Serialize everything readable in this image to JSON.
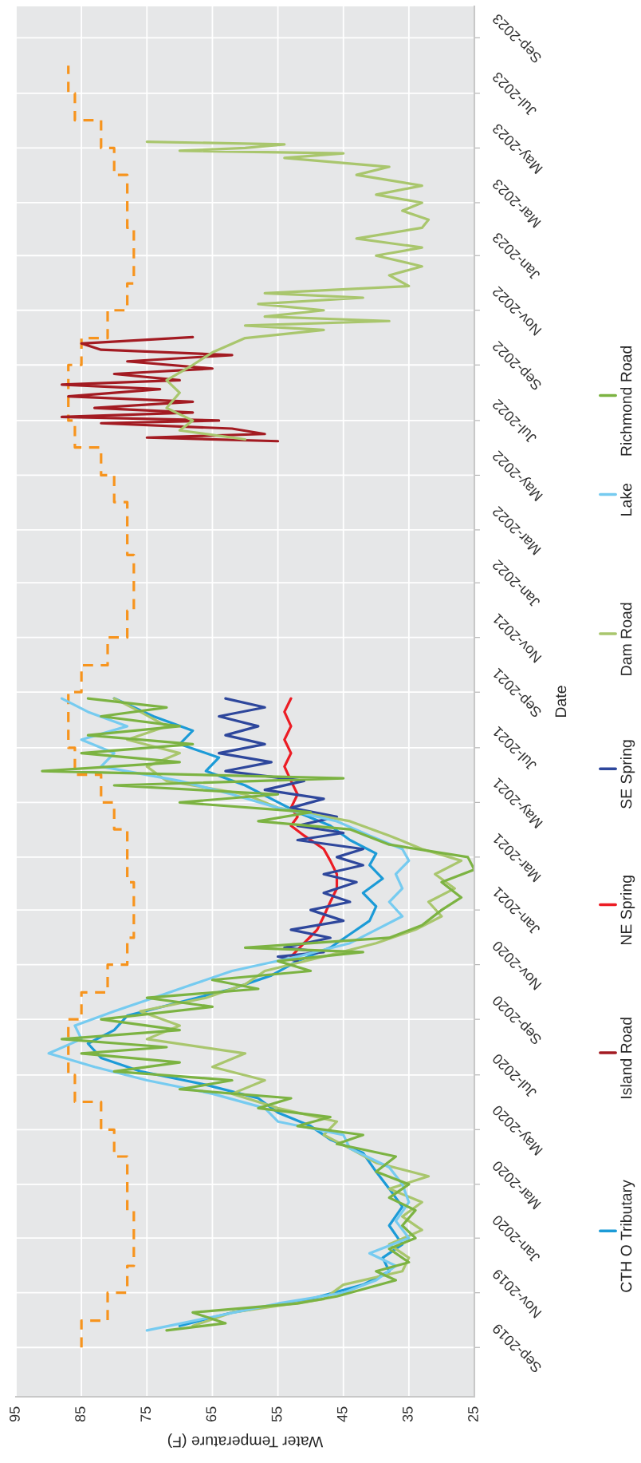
{
  "chart_data": {
    "type": "line",
    "orientation": "horizontal",
    "xlabel": "Water Temperature (F)",
    "ylabel": "Date",
    "ylim": [
      "2019-07-08",
      "2023-10-06"
    ],
    "xlim": [
      95,
      25
    ],
    "yticks": [
      {
        "value": "2019-09",
        "label": "Sep-2019"
      },
      {
        "value": "2019-11",
        "label": "Nov-2019"
      },
      {
        "value": "2020-01",
        "label": "Jan-2020"
      },
      {
        "value": "2020-03",
        "label": "Mar-2020"
      },
      {
        "value": "2020-05",
        "label": "May-2020"
      },
      {
        "value": "2020-07",
        "label": "Jul-2020"
      },
      {
        "value": "2020-09",
        "label": "Sep-2020"
      },
      {
        "value": "2020-11",
        "label": "Nov-2020"
      },
      {
        "value": "2021-01",
        "label": "Jan-2021"
      },
      {
        "value": "2021-03",
        "label": "Mar-2021"
      },
      {
        "value": "2021-05",
        "label": "May-2021"
      },
      {
        "value": "2021-07",
        "label": "Jul-2021"
      },
      {
        "value": "2021-09",
        "label": "Sep-2021"
      },
      {
        "value": "2021-11",
        "label": "Nov-2021"
      },
      {
        "value": "2022-01",
        "label": "Jan-2022"
      },
      {
        "value": "2022-03",
        "label": "Mar-2022"
      },
      {
        "value": "2022-05",
        "label": "May-2022"
      },
      {
        "value": "2022-07",
        "label": "Jul-2022"
      },
      {
        "value": "2022-09",
        "label": "Sep-2022"
      },
      {
        "value": "2022-11",
        "label": "Nov-2022"
      },
      {
        "value": "2023-01",
        "label": "Jan-2023"
      },
      {
        "value": "2023-03",
        "label": "Mar-2023"
      },
      {
        "value": "2023-05",
        "label": "May-2023"
      },
      {
        "value": "2023-07",
        "label": "Jul-2023"
      },
      {
        "value": "2023-09",
        "label": "Sep-2023"
      }
    ],
    "xticks": [
      95,
      85,
      75,
      65,
      55,
      45,
      35,
      25
    ],
    "grid": true,
    "legend": "right",
    "series": [
      {
        "type": "step",
        "line_style": "dashed",
        "color": "#f7941d",
        "x": [
          "2019-09",
          "2019-10",
          "2019-11",
          "2019-12",
          "2020-01",
          "2020-02",
          "2020-03",
          "2020-04",
          "2020-05",
          "2020-06",
          "2020-07",
          "2020-08",
          "2020-09",
          "2020-10",
          "2020-11",
          "2020-12",
          "2021-01",
          "2021-02",
          "2021-03",
          "2021-04",
          "2021-05",
          "2021-06",
          "2021-07",
          "2021-08",
          "2021-09",
          "2021-10",
          "2021-11",
          "2021-12",
          "2022-01",
          "2022-02",
          "2022-03",
          "2022-04",
          "2022-05",
          "2022-06",
          "2022-07",
          "2022-08",
          "2022-09",
          "2022-10",
          "2022-11",
          "2022-12",
          "2023-01",
          "2023-02",
          "2023-03",
          "2023-04",
          "2023-05",
          "2023-06",
          "2023-07",
          "2023-08"
        ],
        "values": [
          85,
          81,
          78,
          77,
          77,
          78,
          78,
          80,
          82,
          86,
          87,
          87,
          85,
          81,
          78,
          77,
          77,
          78,
          78,
          80,
          82,
          86,
          87,
          87,
          85,
          81,
          78,
          77,
          77,
          78,
          78,
          80,
          82,
          86,
          87,
          87,
          85,
          81,
          78,
          77,
          77,
          78,
          78,
          80,
          82,
          86,
          87,
          87
        ]
      },
      {
        "name": "CTH O Tributary",
        "color": "#1c9bd7",
        "x": [
          "2019-09-25",
          "2019-10-10",
          "2019-10-25",
          "2019-11-10",
          "2019-11-25",
          "2019-12-10",
          "2019-12-25",
          "2020-01-15",
          "2020-02-05",
          "2020-02-25",
          "2020-03-15",
          "2020-04-05",
          "2020-04-20",
          "2020-05-05",
          "2020-05-20",
          "2020-06-05",
          "2020-06-20",
          "2020-07-05",
          "2020-07-20",
          "2020-08-05",
          "2020-08-20",
          "2020-09-05",
          "2020-09-20",
          "2020-10-05",
          "2020-10-20",
          "2020-11-05",
          "2020-11-20",
          "2020-12-05",
          "2020-12-20",
          "2021-01-05",
          "2021-01-20",
          "2021-02-05",
          "2021-02-20",
          "2021-03-05",
          "2021-03-20",
          "2021-04-05",
          "2021-04-20",
          "2021-05-05",
          "2021-05-20",
          "2021-06-05",
          "2021-06-20",
          "2021-07-05",
          "2021-07-20",
          "2021-08-05",
          "2021-08-25"
        ],
        "values": [
          70,
          62,
          50,
          42,
          38,
          39,
          36,
          38,
          36,
          38,
          40,
          42,
          47,
          50,
          55,
          58,
          66,
          76,
          82,
          84,
          80,
          78,
          70,
          62,
          56,
          52,
          47,
          44,
          41,
          40,
          42,
          39,
          41,
          40,
          44,
          47,
          52,
          56,
          60,
          66,
          64,
          70,
          68,
          74,
          80
        ]
      },
      {
        "name": "Island Road",
        "color": "#a31b22",
        "x": [
          "2022-06-08",
          "2022-06-12",
          "2022-06-16",
          "2022-06-22",
          "2022-06-28",
          "2022-07-01",
          "2022-07-05",
          "2022-07-10",
          "2022-07-15",
          "2022-07-22",
          "2022-07-28",
          "2022-08-05",
          "2022-08-10",
          "2022-08-15",
          "2022-08-22",
          "2022-08-28",
          "2022-09-05",
          "2022-09-12",
          "2022-09-18",
          "2022-09-25",
          "2022-10-02"
        ],
        "values": [
          55,
          75,
          57,
          62,
          82,
          64,
          88,
          68,
          83,
          68,
          87,
          73,
          88,
          70,
          80,
          65,
          78,
          62,
          82,
          85,
          68
        ]
      },
      {
        "name": "NE Spring",
        "color": "#ec1c24",
        "x": [
          "2020-11-10",
          "2020-11-25",
          "2020-12-10",
          "2020-12-25",
          "2021-01-10",
          "2021-01-25",
          "2021-02-10",
          "2021-02-25",
          "2021-03-10",
          "2021-03-25",
          "2021-04-05",
          "2021-04-15",
          "2021-04-25",
          "2021-05-10",
          "2021-05-25",
          "2021-06-10",
          "2021-06-25",
          "2021-07-10",
          "2021-07-25",
          "2021-08-10",
          "2021-08-25"
        ],
        "values": [
          53,
          51,
          49,
          48,
          47,
          46,
          46,
          47,
          48,
          51,
          53,
          52,
          53,
          52,
          53,
          54,
          53,
          54,
          53,
          54,
          53
        ]
      },
      {
        "name": "SE Spring",
        "color": "#2e479c",
        "x": [
          "2020-11-05",
          "2020-11-10",
          "2020-11-15",
          "2020-11-20",
          "2020-12-01",
          "2020-12-10",
          "2020-12-20",
          "2021-01-01",
          "2021-01-10",
          "2021-01-20",
          "2021-02-01",
          "2021-02-10",
          "2021-02-20",
          "2021-03-01",
          "2021-03-10",
          "2021-03-20",
          "2021-03-28",
          "2021-04-05",
          "2021-04-15",
          "2021-04-25",
          "2021-05-05",
          "2021-05-15",
          "2021-05-25",
          "2021-06-05",
          "2021-06-15",
          "2021-06-25",
          "2021-07-05",
          "2021-07-15",
          "2021-07-25",
          "2021-08-05",
          "2021-08-15",
          "2021-08-25"
        ],
        "values": [
          52,
          55,
          48,
          54,
          47,
          53,
          45,
          50,
          44,
          48,
          43,
          48,
          42,
          46,
          42,
          52,
          45,
          52,
          46,
          53,
          48,
          57,
          51,
          63,
          56,
          64,
          57,
          63,
          58,
          64,
          57,
          63
        ]
      },
      {
        "name": "Dam Road",
        "color": "#a9c66d",
        "x": [
          "2019-09-25",
          "2019-10-10",
          "2019-10-25",
          "2019-11-10",
          "2019-11-25",
          "2019-12-10",
          "2019-12-25",
          "2020-01-10",
          "2020-01-25",
          "2020-02-10",
          "2020-02-25",
          "2020-03-10",
          "2020-03-25",
          "2020-04-10",
          "2020-04-25",
          "2020-05-10",
          "2020-05-25",
          "2020-06-10",
          "2020-06-25",
          "2020-07-10",
          "2020-07-25",
          "2020-08-10",
          "2020-08-25",
          "2020-09-10",
          "2020-09-25",
          "2020-10-10",
          "2020-10-25",
          "2020-11-10",
          "2020-11-25",
          "2020-12-10",
          "2020-12-25",
          "2021-01-10",
          "2021-01-25",
          "2021-02-10",
          "2021-02-25",
          "2021-03-10",
          "2021-03-25",
          "2021-04-10",
          "2021-04-25",
          "2021-05-10",
          "2021-05-25",
          "2021-06-10",
          "2021-06-25",
          "2021-07-10",
          "2021-07-25",
          "2021-08-10",
          "2021-08-25",
          "2022-01-01",
          "2022-06-10",
          "2022-06-20",
          "2022-07-01",
          "2022-07-15",
          "2022-08-01",
          "2022-08-15",
          "2022-09-01",
          "2022-09-15",
          "2022-10-01",
          "2022-10-10",
          "2022-10-15",
          "2022-10-20",
          "2022-10-25",
          "2022-11-01",
          "2022-11-08",
          "2022-11-15",
          "2022-11-20",
          "2022-11-28",
          "2022-12-10",
          "2022-12-20",
          "2023-01-01",
          "2023-01-10",
          "2023-01-20",
          "2023-02-01",
          "2023-02-10",
          "2023-02-20",
          "2023-03-01",
          "2023-03-10",
          "2023-03-20",
          "2023-04-01",
          "2023-04-10",
          "2023-04-20",
          "2023-04-25",
          "2023-04-28",
          "2023-05-01",
          "2023-05-05",
          "2023-05-08"
        ],
        "values": [
          68,
          62,
          48,
          45,
          36,
          35,
          38,
          33,
          36,
          33,
          38,
          32,
          40,
          44,
          48,
          46,
          55,
          62,
          57,
          65,
          60,
          75,
          70,
          76,
          66,
          60,
          57,
          48,
          40,
          34,
          30,
          32,
          28,
          31,
          27,
          33,
          38,
          44,
          55,
          60,
          72,
          75,
          70,
          78,
          72,
          76,
          80,
          null,
          60,
          70,
          68,
          72,
          70,
          72,
          68,
          65,
          60,
          48,
          60,
          38,
          57,
          48,
          58,
          42,
          57,
          35,
          38,
          33,
          40,
          33,
          43,
          33,
          32,
          36,
          33,
          40,
          33,
          43,
          38,
          54,
          45,
          70,
          60,
          54,
          75
        ]
      },
      {
        "name": "Lake",
        "color": "#76cbf0",
        "x": [
          "2019-09-20",
          "2019-10-05",
          "2019-10-20",
          "2019-11-01",
          "2019-11-15",
          "2019-12-01",
          "2019-12-15",
          "2020-01-01",
          "2020-01-20",
          "2020-02-10",
          "2020-03-01",
          "2020-03-20",
          "2020-04-10",
          "2020-04-25",
          "2020-05-10",
          "2020-05-25",
          "2020-06-10",
          "2020-06-25",
          "2020-07-10",
          "2020-07-25",
          "2020-08-10",
          "2020-08-25",
          "2020-09-10",
          "2020-09-25",
          "2020-10-10",
          "2020-10-25",
          "2020-11-10",
          "2020-11-25",
          "2020-12-10",
          "2020-12-25",
          "2021-01-10",
          "2021-01-25",
          "2021-02-10",
          "2021-02-25",
          "2021-03-10",
          "2021-03-25",
          "2021-04-10",
          "2021-04-25",
          "2021-05-10",
          "2021-05-25",
          "2021-06-10",
          "2021-06-25",
          "2021-07-10",
          "2021-07-25",
          "2021-08-10",
          "2021-08-25"
        ],
        "values": [
          75,
          65,
          55,
          45,
          40,
          37,
          41,
          35,
          37,
          35,
          36,
          38,
          44,
          45,
          55,
          57,
          65,
          75,
          83,
          90,
          85,
          86,
          80,
          74,
          68,
          62,
          52,
          44,
          40,
          36,
          38,
          36,
          37,
          35,
          36,
          41,
          46,
          55,
          62,
          70,
          82,
          80,
          85,
          78,
          84,
          88
        ]
      },
      {
        "name": "Richmond Road",
        "color": "#7cb342",
        "x": [
          "2019-09-20",
          "2019-09-28",
          "2019-10-10",
          "2019-10-20",
          "2019-10-28",
          "2019-11-05",
          "2019-11-15",
          "2019-11-25",
          "2019-12-05",
          "2019-12-20",
          "2020-01-01",
          "2020-01-15",
          "2020-02-01",
          "2020-02-15",
          "2020-03-01",
          "2020-03-15",
          "2020-04-01",
          "2020-04-15",
          "2020-04-25",
          "2020-05-05",
          "2020-05-15",
          "2020-05-25",
          "2020-06-05",
          "2020-06-15",
          "2020-06-25",
          "2020-07-05",
          "2020-07-15",
          "2020-07-25",
          "2020-08-01",
          "2020-08-10",
          "2020-08-20",
          "2020-09-01",
          "2020-09-15",
          "2020-09-25",
          "2020-10-05",
          "2020-10-15",
          "2020-10-25",
          "2020-11-05",
          "2020-11-15",
          "2020-11-20",
          "2020-12-01",
          "2020-12-15",
          "2021-01-01",
          "2021-01-15",
          "2021-02-01",
          "2021-02-15",
          "2021-03-01",
          "2021-03-15",
          "2021-04-01",
          "2021-04-10",
          "2021-04-20",
          "2021-05-01",
          "2021-05-10",
          "2021-05-20",
          "2021-05-28",
          "2021-06-05",
          "2021-06-15",
          "2021-06-25",
          "2021-07-05",
          "2021-07-15",
          "2021-07-25",
          "2021-08-05",
          "2021-08-15",
          "2021-08-25"
        ],
        "values": [
          72,
          63,
          68,
          52,
          46,
          42,
          37,
          40,
          35,
          38,
          34,
          36,
          34,
          38,
          35,
          40,
          37,
          46,
          42,
          52,
          47,
          58,
          53,
          70,
          62,
          80,
          70,
          85,
          72,
          88,
          70,
          82,
          65,
          75,
          58,
          65,
          50,
          55,
          42,
          60,
          38,
          33,
          30,
          27,
          30,
          25,
          26,
          38,
          44,
          58,
          50,
          70,
          55,
          80,
          45,
          91,
          70,
          85,
          68,
          84,
          70,
          82,
          72,
          84
        ]
      }
    ]
  }
}
